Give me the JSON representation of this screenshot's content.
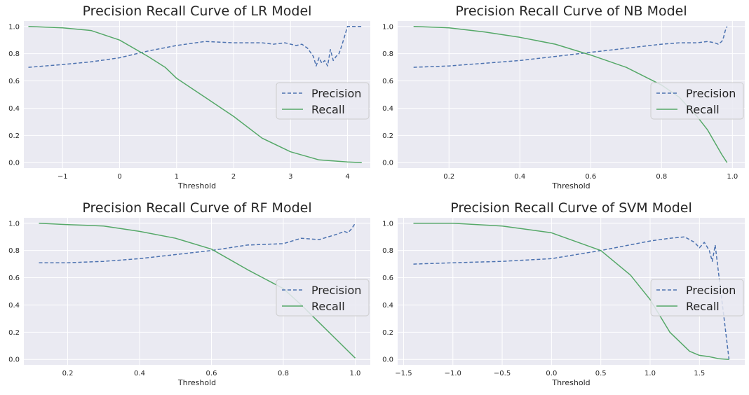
{
  "colors": {
    "background": "#eaeaf2",
    "grid": "#ffffff",
    "precision": "#4c72b0",
    "recall": "#55a868",
    "legend_bg": "#eaeaf2",
    "legend_border": "#cccccc",
    "text": "#262626"
  },
  "chart_data": [
    {
      "type": "line",
      "title": "Precision Recall Curve of LR Model",
      "xlabel": "Threshold",
      "ylabel": "",
      "xlim": [
        -1.68,
        4.4
      ],
      "ylim": [
        -0.04,
        1.04
      ],
      "xticks": [
        -1,
        0,
        1,
        2,
        3,
        4
      ],
      "xtick_labels": [
        "−1",
        "0",
        "1",
        "2",
        "3",
        "4"
      ],
      "yticks": [
        0.0,
        0.2,
        0.4,
        0.6,
        0.8,
        1.0
      ],
      "ytick_labels": [
        "0.0",
        "0.2",
        "0.4",
        "0.6",
        "0.8",
        "1.0"
      ],
      "grid": true,
      "legend": "center-right",
      "series": [
        {
          "name": "Precision",
          "style": "dashed",
          "x": [
            -1.6,
            -1.0,
            -0.5,
            0.0,
            0.5,
            1.0,
            1.5,
            2.0,
            2.5,
            2.7,
            2.9,
            3.1,
            3.2,
            3.3,
            3.4,
            3.45,
            3.5,
            3.55,
            3.6,
            3.65,
            3.7,
            3.75,
            3.8,
            3.85,
            3.9,
            4.0,
            4.1,
            4.2,
            4.25
          ],
          "y": [
            0.7,
            0.72,
            0.74,
            0.77,
            0.82,
            0.86,
            0.89,
            0.88,
            0.88,
            0.87,
            0.88,
            0.86,
            0.87,
            0.84,
            0.78,
            0.71,
            0.77,
            0.73,
            0.75,
            0.71,
            0.83,
            0.75,
            0.78,
            0.8,
            0.86,
            1.0,
            1.0,
            1.0,
            1.0
          ]
        },
        {
          "name": "Recall",
          "style": "solid",
          "x": [
            -1.6,
            -1.0,
            -0.5,
            0.0,
            0.5,
            0.8,
            1.0,
            1.5,
            2.0,
            2.5,
            3.0,
            3.5,
            4.0,
            4.25
          ],
          "y": [
            1.0,
            0.99,
            0.97,
            0.9,
            0.78,
            0.7,
            0.62,
            0.48,
            0.34,
            0.18,
            0.08,
            0.02,
            0.005,
            0.0
          ]
        }
      ]
    },
    {
      "type": "line",
      "title": "Precision Recall Curve of NB Model",
      "xlabel": "Threshold",
      "ylabel": "",
      "xlim": [
        0.055,
        1.035
      ],
      "ylim": [
        -0.04,
        1.04
      ],
      "xticks": [
        0.2,
        0.4,
        0.6,
        0.8,
        1.0
      ],
      "xtick_labels": [
        "0.2",
        "0.4",
        "0.6",
        "0.8",
        "1.0"
      ],
      "yticks": [
        0.0,
        0.2,
        0.4,
        0.6,
        0.8,
        1.0
      ],
      "ytick_labels": [
        "0.0",
        "0.2",
        "0.4",
        "0.6",
        "0.8",
        "1.0"
      ],
      "grid": true,
      "legend": "center-right",
      "series": [
        {
          "name": "Precision",
          "style": "dashed",
          "x": [
            0.1,
            0.2,
            0.3,
            0.4,
            0.5,
            0.6,
            0.7,
            0.8,
            0.85,
            0.9,
            0.93,
            0.95,
            0.96,
            0.97,
            0.975,
            0.98,
            0.985
          ],
          "y": [
            0.7,
            0.71,
            0.73,
            0.75,
            0.78,
            0.81,
            0.84,
            0.87,
            0.88,
            0.88,
            0.89,
            0.88,
            0.87,
            0.89,
            0.92,
            0.97,
            1.0
          ]
        },
        {
          "name": "Recall",
          "style": "solid",
          "x": [
            0.1,
            0.2,
            0.3,
            0.4,
            0.5,
            0.6,
            0.7,
            0.8,
            0.85,
            0.9,
            0.93,
            0.95,
            0.97,
            0.985
          ],
          "y": [
            1.0,
            0.99,
            0.96,
            0.92,
            0.87,
            0.79,
            0.7,
            0.57,
            0.48,
            0.34,
            0.24,
            0.15,
            0.06,
            0.0
          ]
        }
      ]
    },
    {
      "type": "line",
      "title": "Precision Recall Curve of RF Model",
      "xlabel": "Threshold",
      "ylabel": "",
      "xlim": [
        0.078,
        1.042
      ],
      "ylim": [
        -0.04,
        1.04
      ],
      "xticks": [
        0.2,
        0.4,
        0.6,
        0.8,
        1.0
      ],
      "xtick_labels": [
        "0.2",
        "0.4",
        "0.6",
        "0.8",
        "1.0"
      ],
      "yticks": [
        0.0,
        0.2,
        0.4,
        0.6,
        0.8,
        1.0
      ],
      "ytick_labels": [
        "0.0",
        "0.2",
        "0.4",
        "0.6",
        "0.8",
        "1.0"
      ],
      "grid": true,
      "legend": "center-right",
      "series": [
        {
          "name": "Precision",
          "style": "dashed",
          "x": [
            0.12,
            0.2,
            0.3,
            0.4,
            0.5,
            0.6,
            0.7,
            0.8,
            0.85,
            0.9,
            0.95,
            0.97,
            0.98,
            0.99,
            1.0
          ],
          "y": [
            0.71,
            0.71,
            0.72,
            0.74,
            0.77,
            0.8,
            0.84,
            0.85,
            0.89,
            0.88,
            0.92,
            0.94,
            0.93,
            0.96,
            1.0
          ]
        },
        {
          "name": "Recall",
          "style": "solid",
          "x": [
            0.12,
            0.2,
            0.3,
            0.4,
            0.5,
            0.6,
            0.7,
            0.8,
            0.85,
            0.9,
            0.95,
            1.0
          ],
          "y": [
            1.0,
            0.99,
            0.98,
            0.94,
            0.89,
            0.81,
            0.66,
            0.52,
            0.4,
            0.27,
            0.14,
            0.01
          ]
        }
      ]
    },
    {
      "type": "line",
      "title": "Precision Recall Curve of SVM Model",
      "xlabel": "Threshold",
      "ylabel": "",
      "xlim": [
        -1.56,
        1.96
      ],
      "ylim": [
        -0.04,
        1.04
      ],
      "xticks": [
        -1.5,
        -1.0,
        -0.5,
        0.0,
        0.5,
        1.0,
        1.5
      ],
      "xtick_labels": [
        "−1.5",
        "−1.0",
        "−0.5",
        "0.0",
        "0.5",
        "1.0",
        "1.5"
      ],
      "yticks": [
        0.0,
        0.2,
        0.4,
        0.6,
        0.8,
        1.0
      ],
      "ytick_labels": [
        "0.0",
        "0.2",
        "0.4",
        "0.6",
        "0.8",
        "1.0"
      ],
      "grid": true,
      "legend": "center-right",
      "series": [
        {
          "name": "Precision",
          "style": "dashed",
          "x": [
            -1.4,
            -1.0,
            -0.5,
            0.0,
            0.5,
            1.0,
            1.2,
            1.35,
            1.45,
            1.5,
            1.55,
            1.6,
            1.63,
            1.66,
            1.7,
            1.75,
            1.8
          ],
          "y": [
            0.7,
            0.71,
            0.72,
            0.74,
            0.8,
            0.87,
            0.89,
            0.9,
            0.86,
            0.82,
            0.86,
            0.8,
            0.72,
            0.84,
            0.6,
            0.3,
            0.0
          ]
        },
        {
          "name": "Recall",
          "style": "solid",
          "x": [
            -1.4,
            -1.0,
            -0.5,
            0.0,
            0.5,
            0.8,
            1.0,
            1.2,
            1.4,
            1.5,
            1.6,
            1.7,
            1.8
          ],
          "y": [
            1.0,
            1.0,
            0.98,
            0.93,
            0.8,
            0.62,
            0.44,
            0.2,
            0.06,
            0.03,
            0.02,
            0.005,
            0.0
          ]
        }
      ]
    }
  ]
}
